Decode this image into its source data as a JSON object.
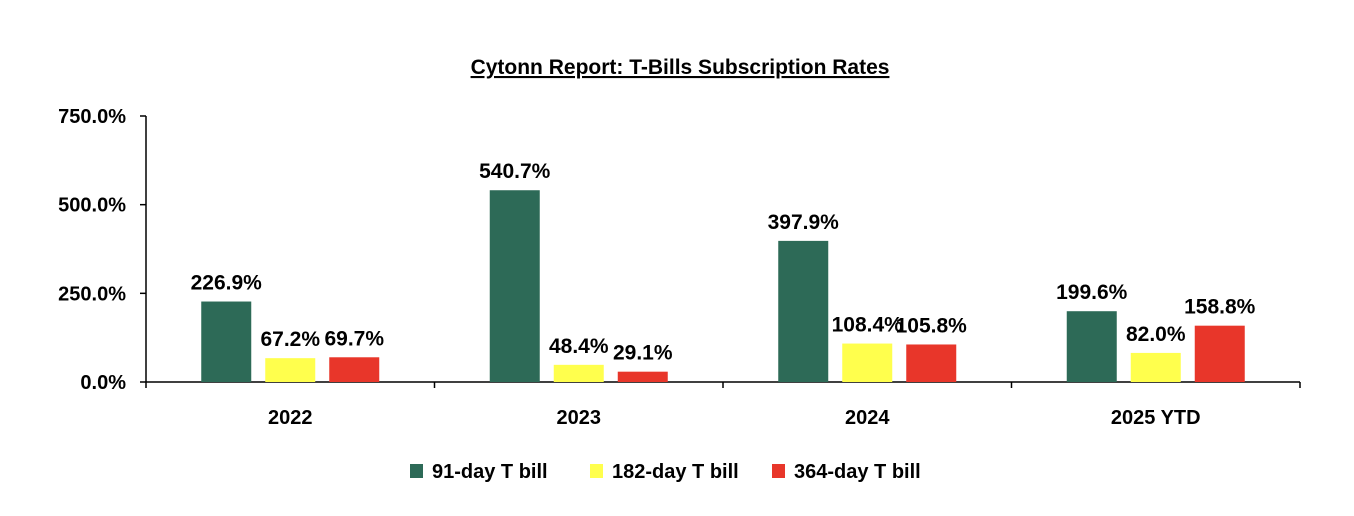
{
  "chart_data": {
    "type": "bar",
    "title": "Cytonn Report: T-Bills Subscription Rates",
    "categories": [
      "2022",
      "2023",
      "2024",
      "2025 YTD"
    ],
    "series": [
      {
        "name": "91-day T bill",
        "color": "#2D6A57",
        "values": [
          226.9,
          540.7,
          397.9,
          199.6
        ],
        "labels": [
          "226.9%",
          "540.7%",
          "397.9%",
          "199.6%"
        ]
      },
      {
        "name": "182-day T bill",
        "color": "#FFFF4D",
        "values": [
          67.2,
          48.4,
          108.4,
          82.0
        ],
        "labels": [
          "67.2%",
          "48.4%",
          "108.4%",
          "82.0%"
        ]
      },
      {
        "name": "364-day T bill",
        "color": "#E8362A",
        "values": [
          69.7,
          29.1,
          105.8,
          158.8
        ],
        "labels": [
          "69.7%",
          "29.1%",
          "105.8%",
          "158.8%"
        ]
      }
    ],
    "ylim": [
      0,
      750
    ],
    "yticks": [
      0,
      250,
      500,
      750
    ],
    "ytick_labels": [
      "0.0%",
      "250.0%",
      "500.0%",
      "750.0%"
    ],
    "xlabel": "",
    "ylabel": "",
    "grid": false,
    "legend_position": "bottom"
  }
}
